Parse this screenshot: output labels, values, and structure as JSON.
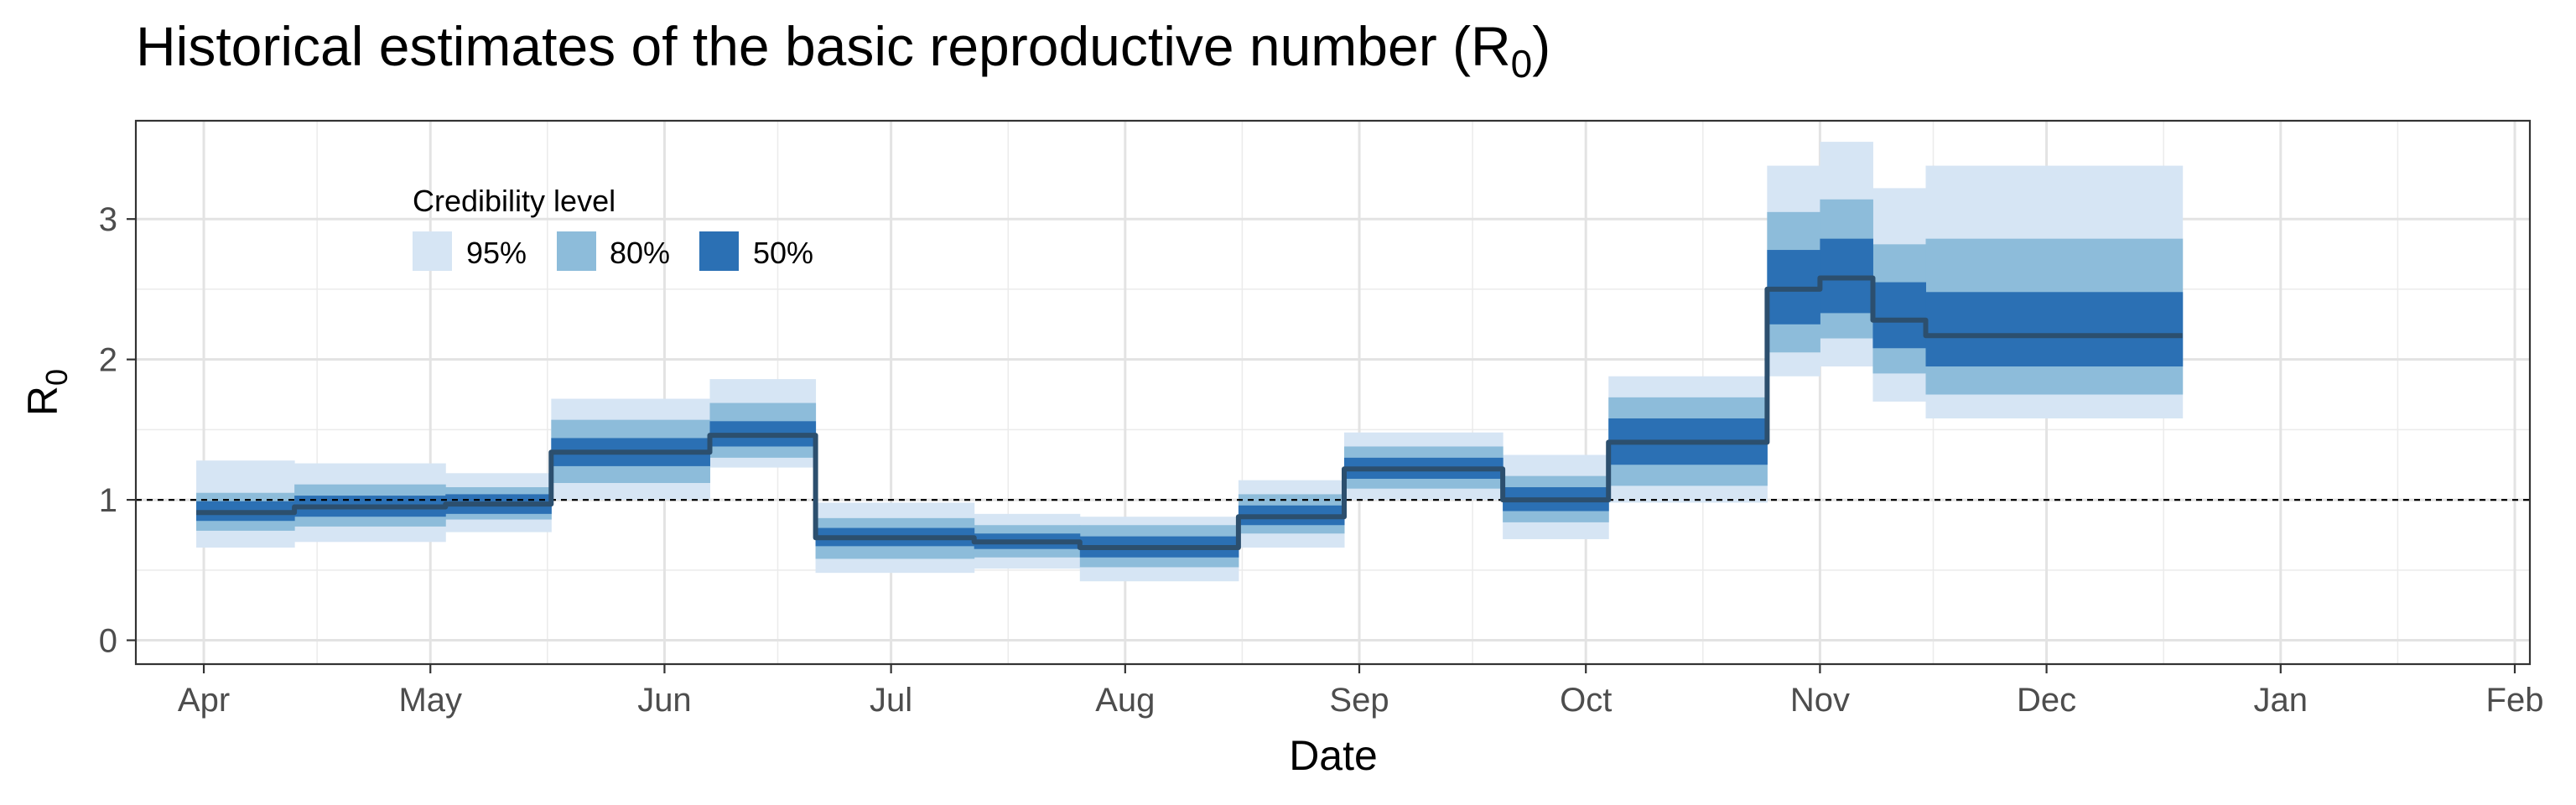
{
  "chart_data": {
    "type": "area",
    "title": "Historical estimates of the basic reproductive number (R",
    "title_sub": "0",
    "title_end": ")",
    "xlabel": "Date",
    "ylabel": "R",
    "ylabel_sub": "0",
    "ylim": [
      -0.17,
      3.7
    ],
    "y_ticks": [
      0,
      1,
      2,
      3
    ],
    "x_range": [
      "2020-03-23",
      "2021-02-03"
    ],
    "x_ticks": [
      {
        "date": "2020-04-01",
        "label": "Apr"
      },
      {
        "date": "2020-05-01",
        "label": "May"
      },
      {
        "date": "2020-06-01",
        "label": "Jun"
      },
      {
        "date": "2020-07-01",
        "label": "Jul"
      },
      {
        "date": "2020-08-01",
        "label": "Aug"
      },
      {
        "date": "2020-09-01",
        "label": "Sep"
      },
      {
        "date": "2020-10-01",
        "label": "Oct"
      },
      {
        "date": "2020-11-01",
        "label": "Nov"
      },
      {
        "date": "2020-12-01",
        "label": "Dec"
      },
      {
        "date": "2021-01-01",
        "label": "Jan"
      },
      {
        "date": "2021-02-01",
        "label": "Feb"
      }
    ],
    "reference_line": 1,
    "grid": true,
    "legend": {
      "title": "Credibility level",
      "position": "top-left inside",
      "items": [
        {
          "label": "95%",
          "color": "#d6e5f4"
        },
        {
          "label": "80%",
          "color": "#8dbcda"
        },
        {
          "label": "50%",
          "color": "#2b70b4"
        }
      ]
    },
    "median_color": "#2c4f6e",
    "segments": [
      {
        "start": "2020-03-31",
        "end": "2020-04-13",
        "median": 0.91,
        "lo50": 0.85,
        "hi50": 0.99,
        "lo80": 0.78,
        "hi80": 1.05,
        "lo95": 0.66,
        "hi95": 1.28
      },
      {
        "start": "2020-04-13",
        "end": "2020-05-03",
        "median": 0.95,
        "lo50": 0.88,
        "hi50": 1.03,
        "lo80": 0.81,
        "hi80": 1.11,
        "lo95": 0.7,
        "hi95": 1.26
      },
      {
        "start": "2020-05-03",
        "end": "2020-05-17",
        "median": 0.97,
        "lo50": 0.9,
        "hi50": 1.04,
        "lo80": 0.86,
        "hi80": 1.09,
        "lo95": 0.77,
        "hi95": 1.19
      },
      {
        "start": "2020-05-17",
        "end": "2020-06-07",
        "median": 1.34,
        "lo50": 1.24,
        "hi50": 1.44,
        "lo80": 1.12,
        "hi80": 1.57,
        "lo95": 1.0,
        "hi95": 1.72
      },
      {
        "start": "2020-06-07",
        "end": "2020-06-21",
        "median": 1.46,
        "lo50": 1.38,
        "hi50": 1.56,
        "lo80": 1.3,
        "hi80": 1.69,
        "lo95": 1.23,
        "hi95": 1.86
      },
      {
        "start": "2020-06-21",
        "end": "2020-07-12",
        "median": 0.73,
        "lo50": 0.67,
        "hi50": 0.8,
        "lo80": 0.58,
        "hi80": 0.87,
        "lo95": 0.48,
        "hi95": 0.98
      },
      {
        "start": "2020-07-12",
        "end": "2020-07-26",
        "median": 0.7,
        "lo50": 0.65,
        "hi50": 0.76,
        "lo80": 0.59,
        "hi80": 0.82,
        "lo95": 0.51,
        "hi95": 0.9
      },
      {
        "start": "2020-07-26",
        "end": "2020-08-16",
        "median": 0.66,
        "lo50": 0.59,
        "hi50": 0.74,
        "lo80": 0.52,
        "hi80": 0.82,
        "lo95": 0.42,
        "hi95": 0.88
      },
      {
        "start": "2020-08-16",
        "end": "2020-08-30",
        "median": 0.88,
        "lo50": 0.82,
        "hi50": 0.96,
        "lo80": 0.76,
        "hi80": 1.04,
        "lo95": 0.66,
        "hi95": 1.14
      },
      {
        "start": "2020-08-30",
        "end": "2020-09-20",
        "median": 1.22,
        "lo50": 1.15,
        "hi50": 1.3,
        "lo80": 1.08,
        "hi80": 1.38,
        "lo95": 1.0,
        "hi95": 1.48
      },
      {
        "start": "2020-09-20",
        "end": "2020-10-04",
        "median": 1.0,
        "lo50": 0.92,
        "hi50": 1.09,
        "lo80": 0.84,
        "hi80": 1.17,
        "lo95": 0.72,
        "hi95": 1.32
      },
      {
        "start": "2020-10-04",
        "end": "2020-10-25",
        "median": 1.41,
        "lo50": 1.25,
        "hi50": 1.58,
        "lo80": 1.1,
        "hi80": 1.73,
        "lo95": 0.98,
        "hi95": 1.88
      },
      {
        "start": "2020-10-25",
        "end": "2020-11-01",
        "median": 2.5,
        "lo50": 2.25,
        "hi50": 2.78,
        "lo80": 2.05,
        "hi80": 3.05,
        "lo95": 1.88,
        "hi95": 3.38
      },
      {
        "start": "2020-11-01",
        "end": "2020-11-08",
        "median": 2.58,
        "lo50": 2.33,
        "hi50": 2.86,
        "lo80": 2.15,
        "hi80": 3.14,
        "lo95": 1.95,
        "hi95": 3.55
      },
      {
        "start": "2020-11-08",
        "end": "2020-11-15",
        "median": 2.28,
        "lo50": 2.08,
        "hi50": 2.55,
        "lo80": 1.9,
        "hi80": 2.82,
        "lo95": 1.7,
        "hi95": 3.22
      },
      {
        "start": "2020-11-15",
        "end": "2020-12-19",
        "median": 2.17,
        "lo50": 1.95,
        "hi50": 2.48,
        "lo80": 1.75,
        "hi80": 2.86,
        "lo95": 1.58,
        "hi95": 3.38
      }
    ]
  }
}
